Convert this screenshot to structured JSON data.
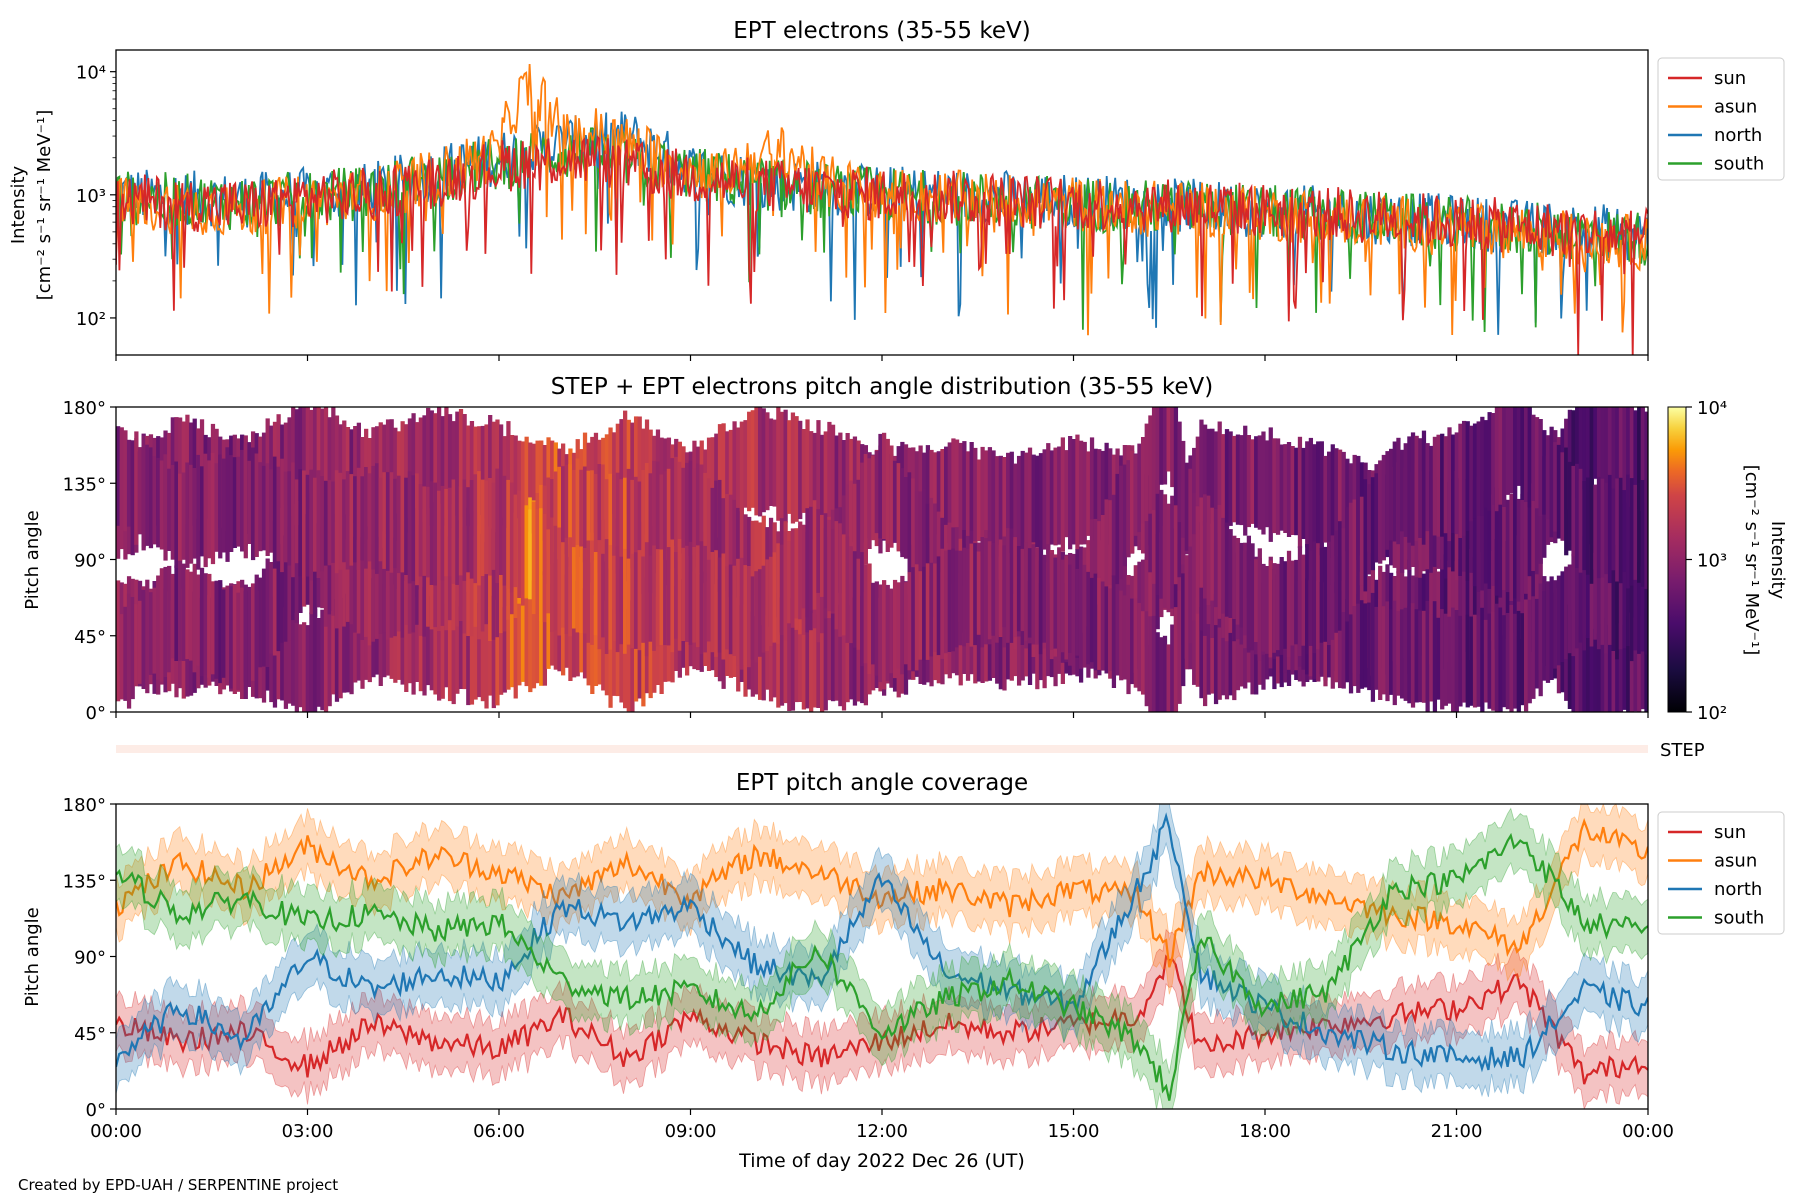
{
  "figure": {
    "credit": "Created by EPD-UAH / SERPENTINE project"
  },
  "colors": {
    "sun": "#d62728",
    "asun": "#ff7f0e",
    "north": "#1f77b4",
    "south": "#2ca02c"
  },
  "chart_data": [
    {
      "type": "line",
      "title": "EPT electrons (35-55 keV)",
      "ylabel": "Intensity",
      "ylabel_units": "[cm⁻² s⁻¹ sr⁻¹ MeV⁻¹]",
      "yscale": "log",
      "ylim": [
        50,
        15000
      ],
      "yticks": [
        {
          "value": 100,
          "label": "10²"
        },
        {
          "value": 1000,
          "label": "10³"
        },
        {
          "value": 10000,
          "label": "10⁴"
        }
      ],
      "x_hours": [
        0,
        1,
        2,
        3,
        4,
        5,
        6,
        6.5,
        7,
        7.5,
        8,
        8.5,
        9,
        9.5,
        10,
        10.5,
        11,
        12,
        13,
        14,
        15,
        16,
        17,
        18,
        19,
        20,
        21,
        22,
        23,
        24
      ],
      "series": [
        {
          "name": "sun",
          "values": [
            900,
            850,
            800,
            950,
            1000,
            1300,
            1700,
            1900,
            2000,
            1900,
            1700,
            1500,
            1400,
            1300,
            1200,
            1150,
            1100,
            1000,
            950,
            900,
            850,
            850,
            800,
            750,
            700,
            650,
            600,
            550,
            500,
            450
          ]
        },
        {
          "name": "asun",
          "values": [
            850,
            800,
            750,
            900,
            1000,
            1400,
            2200,
            8000,
            2800,
            3200,
            2600,
            2000,
            1600,
            1400,
            2000,
            2200,
            1300,
            1000,
            950,
            900,
            850,
            800,
            750,
            700,
            650,
            600,
            550,
            500,
            450,
            400
          ]
        },
        {
          "name": "north",
          "values": [
            1000,
            950,
            900,
            1000,
            1100,
            1500,
            2000,
            2300,
            2600,
            2700,
            3000,
            2200,
            1600,
            1400,
            1300,
            1200,
            1150,
            1050,
            1000,
            950,
            900,
            850,
            800,
            750,
            700,
            650,
            600,
            550,
            520,
            480
          ]
        },
        {
          "name": "south",
          "values": [
            950,
            900,
            850,
            950,
            1050,
            1400,
            1800,
            2000,
            2200,
            2100,
            1900,
            1700,
            1500,
            1350,
            1250,
            1200,
            1100,
            1000,
            950,
            900,
            850,
            800,
            780,
            720,
            680,
            630,
            580,
            530,
            480,
            440
          ]
        }
      ],
      "legend": "right"
    },
    {
      "type": "heatmap",
      "title": "STEP + EPT electrons pitch angle distribution (35-55 keV)",
      "ylabel": "Pitch angle",
      "ylim": [
        0,
        180
      ],
      "colorbar": {
        "label": "Intensity",
        "units": "[cm⁻² s⁻¹ sr⁻¹ MeV⁻¹]",
        "scale": "log",
        "range": [
          100,
          10000
        ],
        "ticks": [
          "10²",
          "10³",
          "10⁴"
        ]
      },
      "x_hours": [
        0,
        1,
        2,
        3,
        4,
        5,
        6,
        6.5,
        7,
        7.5,
        8,
        8.5,
        9,
        9.5,
        10,
        10.5,
        11,
        12,
        13,
        14,
        15,
        16,
        17,
        18,
        19,
        20,
        21,
        22,
        23,
        24
      ],
      "intensity": [
        900,
        850,
        800,
        950,
        1000,
        1300,
        1800,
        3500,
        2300,
        2400,
        2200,
        1800,
        1500,
        1350,
        1500,
        1600,
        1200,
        1000,
        950,
        900,
        850,
        820,
        780,
        730,
        690,
        640,
        590,
        540,
        490,
        440
      ],
      "step_label": "STEP"
    },
    {
      "type": "line",
      "title": "EPT pitch angle coverage",
      "ylabel": "Pitch angle",
      "xlabel": "Time of day 2022 Dec 26 (UT)",
      "ylim": [
        0,
        180
      ],
      "yticks": [
        "0°",
        "45°",
        "90°",
        "135°",
        "180°"
      ],
      "xticks": [
        "00:00",
        "03:00",
        "06:00",
        "09:00",
        "12:00",
        "15:00",
        "18:00",
        "21:00",
        "00:00"
      ],
      "x_hours": [
        0,
        1,
        2,
        3,
        4,
        5,
        6,
        7,
        8,
        9,
        10,
        11,
        12,
        13,
        14,
        15,
        16,
        16.5,
        17,
        18,
        19,
        20,
        21,
        22,
        23,
        24
      ],
      "series": [
        {
          "name": "sun",
          "values": [
            50,
            40,
            45,
            25,
            50,
            40,
            35,
            55,
            30,
            55,
            40,
            30,
            40,
            50,
            45,
            50,
            55,
            90,
            35,
            45,
            50,
            55,
            60,
            75,
            20,
            30
          ]
        },
        {
          "name": "asun",
          "values": [
            120,
            145,
            130,
            155,
            135,
            150,
            140,
            125,
            145,
            125,
            150,
            140,
            125,
            130,
            120,
            130,
            125,
            90,
            140,
            135,
            125,
            115,
            110,
            95,
            165,
            150
          ]
        },
        {
          "name": "north",
          "values": [
            30,
            60,
            40,
            90,
            70,
            80,
            75,
            120,
            110,
            120,
            85,
            75,
            135,
            80,
            70,
            60,
            130,
            170,
            80,
            60,
            45,
            35,
            30,
            30,
            70,
            60
          ]
        },
        {
          "name": "south",
          "values": [
            140,
            115,
            125,
            110,
            115,
            105,
            110,
            75,
            65,
            70,
            55,
            95,
            45,
            65,
            75,
            60,
            40,
            10,
            100,
            60,
            70,
            130,
            135,
            160,
            110,
            105
          ]
        }
      ],
      "legend": "right"
    }
  ]
}
